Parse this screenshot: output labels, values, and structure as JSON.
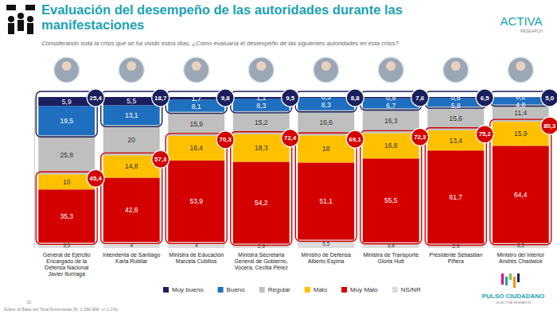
{
  "chart_data": {
    "type": "bar",
    "title": "Evaluación del desempeño de las autoridades durante las manifestaciones",
    "subtitle": "Considerando toda la crisis que se ha vivido estos días, ¿Cómo evaluaría el desempeño de las siguientes autoridades en esta crisis?",
    "categories": [
      "General de Ejército Encargado de la Defensa Nacional Javier Iturriaga",
      "Intendenta de Santiago Karla Rubilar",
      "Ministra de Educación Marcela Cubillos",
      "Ministra Secretaria General de Gobierno, Vocera, Cecilia Pérez",
      "Ministro de Defensa Alberto Espina",
      "Ministra de Transporte Gloria Hutt",
      "Presidente Sebastian Piñera",
      "Ministro del Interior Andrés Chadwick"
    ],
    "series": [
      {
        "name": "Muy bueno",
        "color": "#1b1f5e",
        "values": [
          5.9,
          5.5,
          1.7,
          1.1,
          0.5,
          0.9,
          0.6,
          0.2
        ],
        "value_labels": [
          "5,9",
          "5,5",
          "1,7",
          "1,1",
          "0,5",
          "0,9",
          "0,6",
          "0,2"
        ]
      },
      {
        "name": "Bueno",
        "color": "#1f6fc0",
        "values": [
          19.5,
          13.1,
          8.1,
          8.3,
          8.3,
          6.7,
          5.8,
          4.8
        ],
        "value_labels": [
          "19,5",
          "13,1",
          "8,1",
          "8,3",
          "8,3",
          "6,7",
          "5,8",
          "4,8"
        ]
      },
      {
        "name": "Regular",
        "color": "#bfbfbf",
        "values": [
          25.8,
          20,
          15.9,
          15.2,
          16.6,
          16.3,
          15.6,
          11.4
        ],
        "value_labels": [
          "25,8",
          "20",
          "15,9",
          "15,2",
          "16,6",
          "16,3",
          "15,6",
          "11,4"
        ]
      },
      {
        "name": "Malo",
        "color": "#ffc000",
        "values": [
          10,
          14.8,
          16.4,
          18.3,
          18,
          16.8,
          13.4,
          15.9
        ],
        "value_labels": [
          "10",
          "14,8",
          "16,4",
          "18,3",
          "18",
          "16,8",
          "13,4",
          "15,9"
        ]
      },
      {
        "name": "Muy Malo",
        "color": "#d40000",
        "values": [
          35.3,
          42.6,
          53.9,
          54.2,
          51.1,
          55.5,
          61.7,
          64.4
        ],
        "value_labels": [
          "35,3",
          "42,6",
          "53,9",
          "54,2",
          "51,1",
          "55,5",
          "61,7",
          "64,4"
        ]
      },
      {
        "name": "NS/NR",
        "color": "#dcdcdc",
        "values": [
          3.5,
          4,
          4,
          2.9,
          5.5,
          3.8,
          2.9,
          3.3
        ],
        "value_labels": [
          "3,5",
          "4",
          "4",
          "2,9",
          "5,5",
          "3,8",
          "2,9",
          "3,3"
        ]
      }
    ],
    "positive_totals": {
      "color": "#1b1f5e",
      "values": [
        25.4,
        18.7,
        9.8,
        9.5,
        8.8,
        7.6,
        6.5,
        5.0
      ],
      "value_labels": [
        "25,4",
        "18,7",
        "9,8",
        "9,5",
        "8,8",
        "7,6",
        "6,5",
        "5,0"
      ]
    },
    "negative_totals": {
      "color": "#d40000",
      "values": [
        45.4,
        57.3,
        70.3,
        72.4,
        69.1,
        72.3,
        75.2,
        80.3
      ],
      "value_labels": [
        "45,4",
        "57,3",
        "70,3",
        "72,4",
        "69,1",
        "72,3",
        "75,2",
        "80,3"
      ]
    },
    "ylim": [
      0,
      100
    ],
    "stacked": true,
    "data_labels": true,
    "tick_labels": false,
    "grid": false,
    "legend": "bottom",
    "footnote": "Sobre la Base del Total Entrevistas (N: 2.090 EM: +/-2,1%)",
    "page_number": "32",
    "logo_top": "ACTIVA",
    "logo_top_sub": "RESEARCH",
    "logo_bottom": "PULSO CIUDADANO",
    "logo_bottom_sub": "DE ACTIVA RESEARCH"
  }
}
